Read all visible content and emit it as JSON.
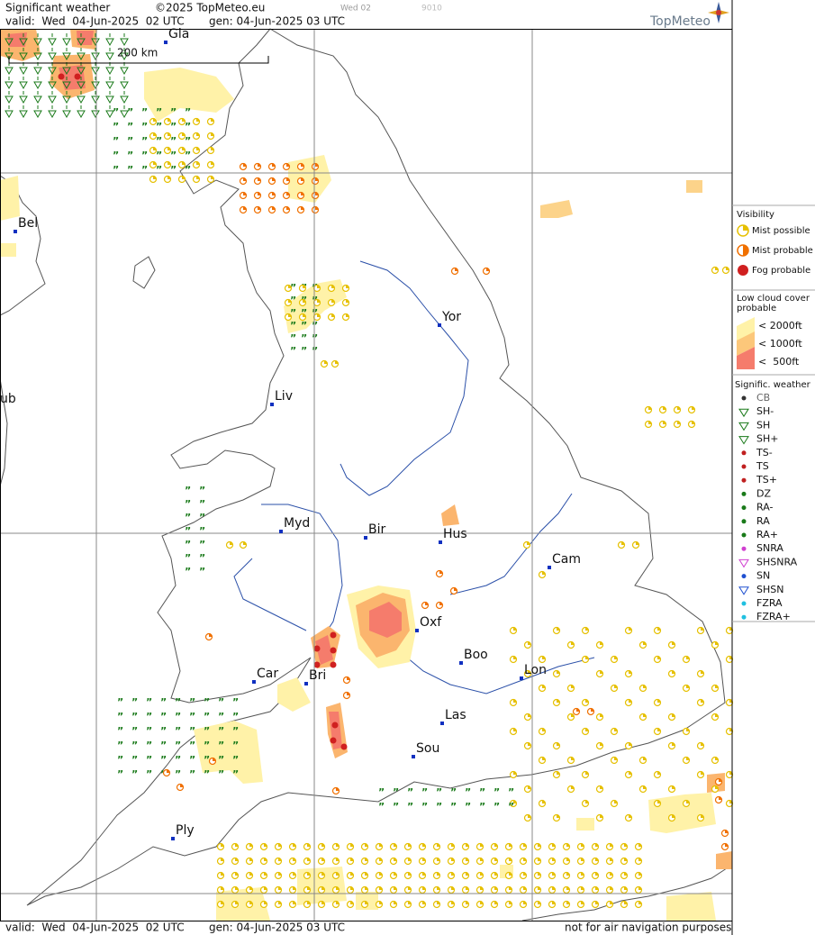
{
  "header": {
    "title": "Significant weather",
    "copyright": "©2025 TopMeteo.eu",
    "valid": "valid:  Wed  04-Jun-2025  02 UTC",
    "generated": "gen: 04-Jun-2025 03 UTC",
    "day": "Wed 02",
    "code": "9010",
    "brand": "TopMeteo"
  },
  "map": {
    "scale": "200 km",
    "cities": [
      "Gla",
      "Bel",
      "ub",
      "Yor",
      "Liv",
      "Myd",
      "Bir",
      "Hus",
      "Cam",
      "Oxf",
      "Car",
      "Bri",
      "Boo",
      "Lon",
      "Las",
      "Sou",
      "Ply"
    ]
  },
  "legend": {
    "visibility": {
      "title": "Visibility",
      "items": [
        "Mist possible",
        "Mist probable",
        "Fog probable"
      ]
    },
    "low_cloud": {
      "title": [
        "Low cloud cover",
        "probable"
      ],
      "items": [
        "< 2000ft",
        "< 1000ft",
        "<  500ft"
      ]
    },
    "weather": {
      "title": "Signific. weather",
      "items": [
        "CB",
        "SH-",
        "SH",
        "SH+",
        "TS-",
        "TS",
        "TS+",
        "DZ",
        "RA-",
        "RA",
        "RA+",
        "SNRA",
        "SHSNRA",
        "SN",
        "SHSN",
        "FZRA",
        "FZRA+"
      ]
    }
  },
  "footer": {
    "valid": "valid:  Wed  04-Jun-2025  02 UTC",
    "generated": "gen: 04-Jun-2025 03 UTC",
    "note": "not for air navigation purposes"
  }
}
